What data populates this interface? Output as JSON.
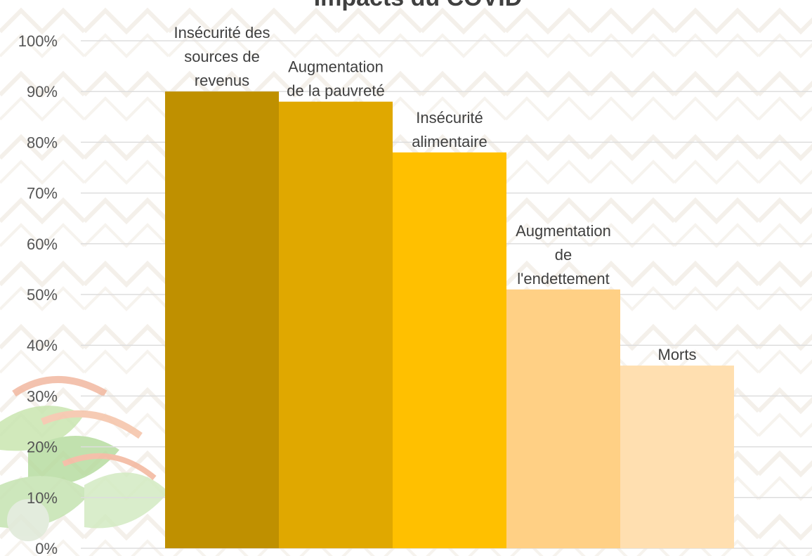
{
  "chart_data": {
    "type": "bar",
    "title": "Impacts du COVID",
    "xlabel": "",
    "ylabel": "",
    "ylim": [
      0,
      1
    ],
    "y_tick_labels": [
      "0%",
      "10%",
      "20%",
      "30%",
      "40%",
      "50%",
      "60%",
      "70%",
      "80%",
      "90%",
      "100%"
    ],
    "grid": true,
    "legend": "none",
    "categories": [
      "Insécurité des sources de revenus",
      "Augmentation de la pauvreté",
      "Insécurité alimentaire",
      "Augmentation de l'endettement",
      "Morts"
    ],
    "data_label_lines": [
      [
        "Insécurité des",
        "sources de",
        "revenus"
      ],
      [
        "Augmentation",
        "de la pauvreté"
      ],
      [
        "Insécurité",
        "alimentaire"
      ],
      [
        "Augmentation",
        "de",
        "l'endettement"
      ],
      [
        "Morts"
      ]
    ],
    "values": [
      0.9,
      0.88,
      0.78,
      0.51,
      0.36
    ],
    "colors": [
      "#bf9000",
      "#e0a800",
      "#ffc000",
      "#ffd085",
      "#ffdfb0"
    ]
  }
}
